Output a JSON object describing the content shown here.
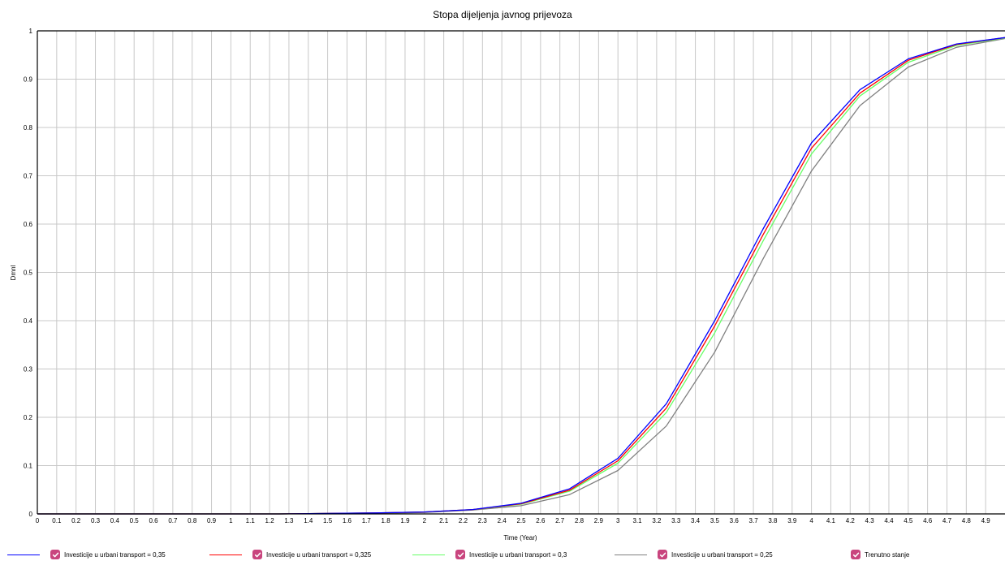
{
  "chart_data": {
    "type": "line",
    "title": "Stopa dijeljenja javnog prijevoza",
    "xlabel": "Time (Year)",
    "ylabel": "Dmnl",
    "xlim": [
      0,
      5
    ],
    "ylim": [
      0,
      1
    ],
    "x_ticks": [
      "0",
      "0.1",
      "0.2",
      "0.3",
      "0.4",
      "0.5",
      "0.6",
      "0.7",
      "0.8",
      "0.9",
      "1",
      "1.1",
      "1.2",
      "1.3",
      "1.4",
      "1.5",
      "1.6",
      "1.7",
      "1.8",
      "1.9",
      "2",
      "2.1",
      "2.2",
      "2.3",
      "2.4",
      "2.5",
      "2.6",
      "2.7",
      "2.8",
      "2.9",
      "3",
      "3.1",
      "3.2",
      "3.3",
      "3.4",
      "3.5",
      "3.6",
      "3.7",
      "3.8",
      "3.9",
      "4",
      "4.1",
      "4.2",
      "4.3",
      "4.4",
      "4.5",
      "4.6",
      "4.7",
      "4.8",
      "4.9"
    ],
    "y_ticks": [
      "0",
      "0.1",
      "0.2",
      "0.3",
      "0.4",
      "0.5",
      "0.6",
      "0.7",
      "0.8",
      "0.9",
      "1"
    ],
    "grid": true,
    "legend_position": "bottom",
    "x": [
      0,
      0.25,
      0.5,
      0.75,
      1,
      1.25,
      1.5,
      1.75,
      2,
      2.25,
      2.5,
      2.75,
      3,
      3.25,
      3.5,
      3.75,
      4,
      4.25,
      4.5,
      4.75,
      5
    ],
    "series": [
      {
        "name": "Investicije u urbani transport = 0,35",
        "color": "#0000ff",
        "values": [
          0,
          0,
          0,
          0,
          0,
          0,
          0.001,
          0.002,
          0.004,
          0.009,
          0.022,
          0.052,
          0.115,
          0.228,
          0.4,
          0.59,
          0.768,
          0.878,
          0.942,
          0.973,
          0.986
        ]
      },
      {
        "name": "Investicije u urbani transport = 0,325",
        "color": "#ff0000",
        "values": [
          0,
          0,
          0,
          0,
          0,
          0,
          0.001,
          0.002,
          0.004,
          0.009,
          0.021,
          0.049,
          0.11,
          0.219,
          0.389,
          0.578,
          0.757,
          0.871,
          0.939,
          0.972,
          0.986
        ]
      },
      {
        "name": "Investicije u urbani transport = 0,3",
        "color": "#66ff66",
        "values": [
          0,
          0,
          0,
          0,
          0,
          0,
          0.001,
          0.002,
          0.004,
          0.009,
          0.02,
          0.047,
          0.105,
          0.21,
          0.375,
          0.565,
          0.745,
          0.865,
          0.935,
          0.97,
          0.985
        ]
      },
      {
        "name": "Investicije u urbani transport = 0,25",
        "color": "#808080",
        "values": [
          0,
          0,
          0,
          0,
          0,
          0,
          0.001,
          0.001,
          0.003,
          0.008,
          0.017,
          0.04,
          0.09,
          0.182,
          0.335,
          0.528,
          0.71,
          0.845,
          0.925,
          0.966,
          0.984
        ]
      }
    ]
  },
  "legend": {
    "items": [
      {
        "label": "Investicije u urbani transport = 0,35",
        "color": "#0000ff",
        "checked": true
      },
      {
        "label": "Investicije u urbani transport = 0,325",
        "color": "#ff0000",
        "checked": true
      },
      {
        "label": "Investicije u urbani transport = 0,3",
        "color": "#66ff66",
        "checked": true
      },
      {
        "label": "Investicije u urbani transport = 0,25",
        "color": "#808080",
        "checked": true
      },
      {
        "label": "Trenutno stanje",
        "color": "",
        "checked": true
      }
    ],
    "checkbox_color": "#c9457e"
  }
}
